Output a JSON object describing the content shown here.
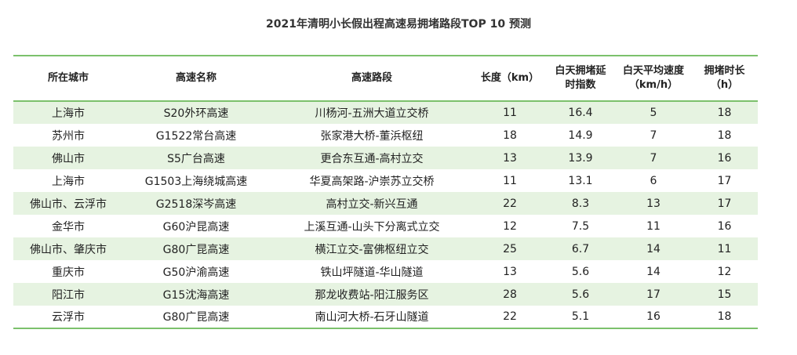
{
  "title": "2021年清明小长假出程高速易拥堵路段TOP 10 预测",
  "colors": {
    "accent_line": "#7cc16c",
    "row_shade": "#e6f3e1"
  },
  "table": {
    "headers": [
      "所在城市",
      "高速名称",
      "高速路段",
      "长度（km）",
      "白天拥堵延\n时指数",
      "白天平均速度\n（km/h）",
      "拥堵时长\n（h）"
    ],
    "rows": [
      [
        "上海市",
        "S20外环高速",
        "川杨河-五洲大道立交桥",
        "11",
        "16.4",
        "5",
        "18"
      ],
      [
        "苏州市",
        "G1522常台高速",
        "张家港大桥-董浜枢纽",
        "18",
        "14.9",
        "7",
        "18"
      ],
      [
        "佛山市",
        "S5广台高速",
        "更合东互通-高村立交",
        "13",
        "13.9",
        "7",
        "16"
      ],
      [
        "上海市",
        "G1503上海绕城高速",
        "华夏高架路-沪崇苏立交桥",
        "11",
        "13.1",
        "6",
        "17"
      ],
      [
        "佛山市、云浮市",
        "G2518深岑高速",
        "高村立交-新兴互通",
        "22",
        "8.3",
        "13",
        "17"
      ],
      [
        "金华市",
        "G60沪昆高速",
        "上溪互通-山头下分离式立交",
        "12",
        "7.5",
        "11",
        "16"
      ],
      [
        "佛山市、肇庆市",
        "G80广昆高速",
        "横江立交-富佛枢纽立交",
        "25",
        "6.7",
        "14",
        "11"
      ],
      [
        "重庆市",
        "G50沪渝高速",
        "铁山坪隧道-华山隧道",
        "13",
        "5.6",
        "14",
        "12"
      ],
      [
        "阳江市",
        "G15沈海高速",
        "那龙收费站-阳江服务区",
        "28",
        "5.6",
        "17",
        "15"
      ],
      [
        "云浮市",
        "G80广昆高速",
        "南山河大桥-石牙山隧道",
        "22",
        "5.1",
        "16",
        "18"
      ]
    ]
  }
}
